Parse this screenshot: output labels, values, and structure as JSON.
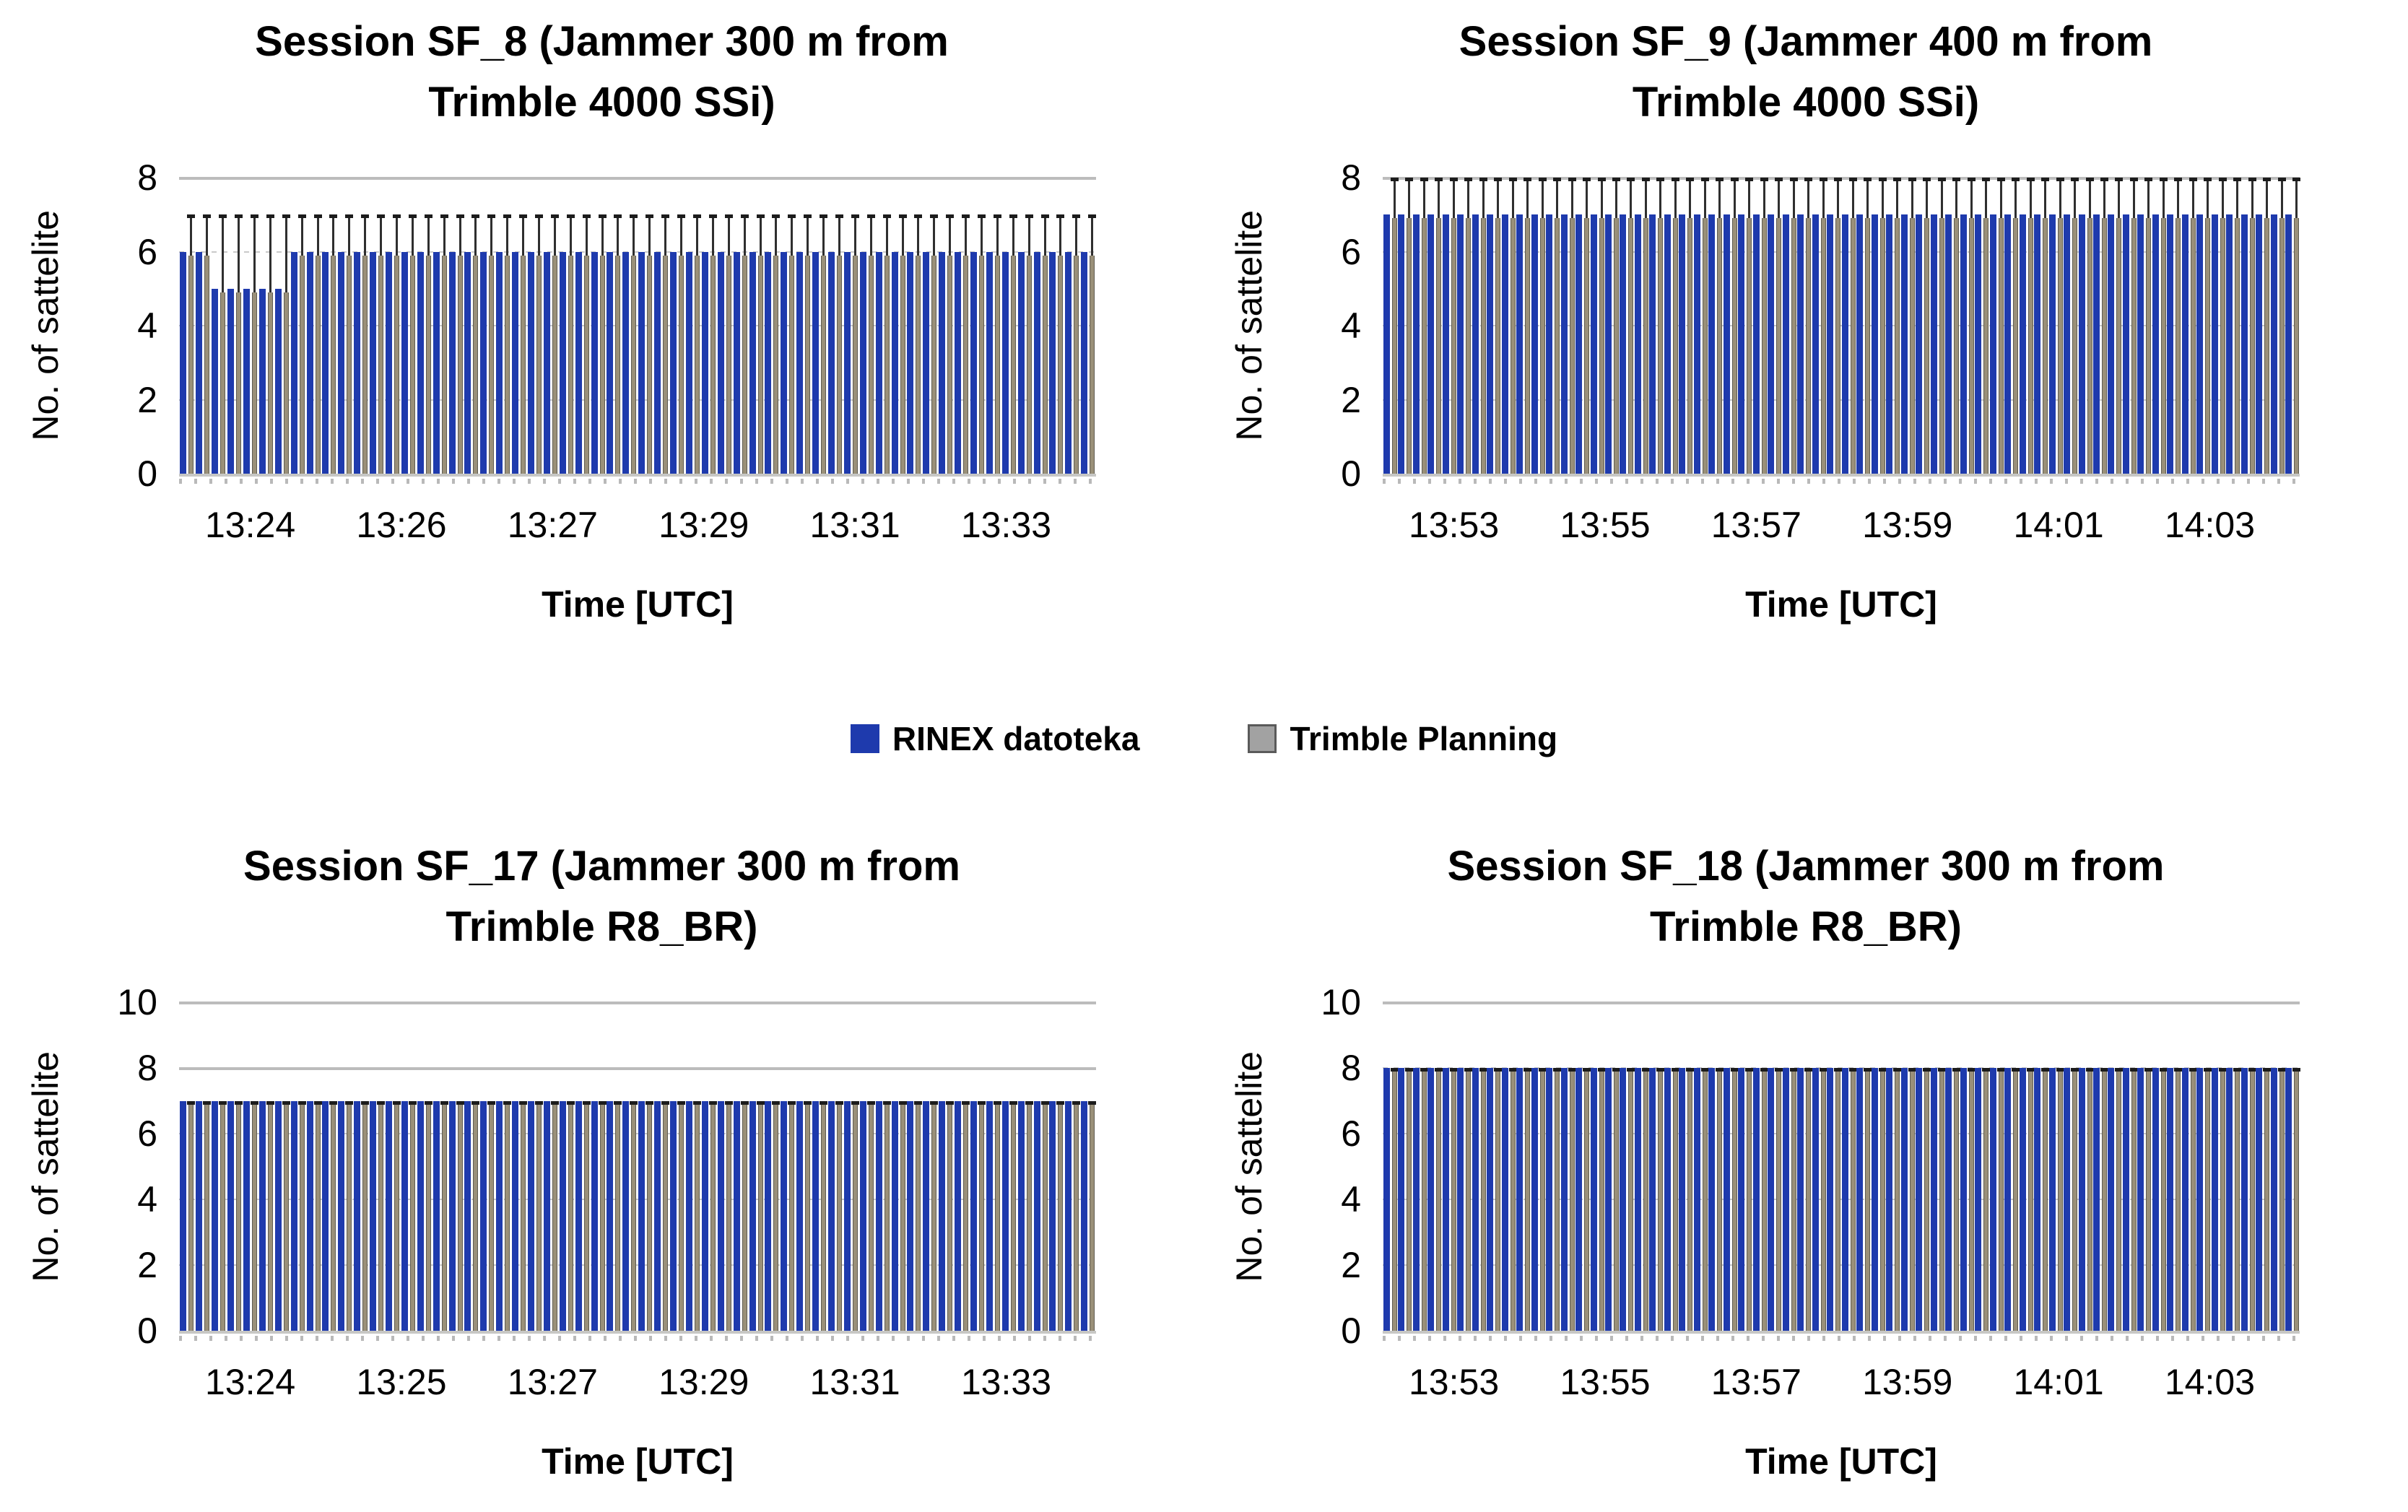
{
  "legend": {
    "items": [
      {
        "label": "RINEX datoteka"
      },
      {
        "label": "Trimble Planning"
      }
    ]
  },
  "colors": {
    "rinex_blue": "#1e3aad",
    "planning_gray_fill": "#9a9079",
    "planning_gray_edge": "#5f5c52",
    "planning_upper_dark": "#2f2f2f",
    "planning_cap_dark": "#1c1c1c",
    "legend_gray_fill": "#a2a2a2",
    "legend_gray_border": "#5a5a5a",
    "grid_solid": "#bcbcbc",
    "grid_dotted": "#c9c9c9"
  },
  "chart_data": [
    {
      "type": "bar",
      "title_line1": "Session SF_8 (Jammer 300 m from",
      "title_line2": "Trimble 4000 SSi)",
      "ylabel": "No. of sattelite",
      "xlabel": "Time [UTC]",
      "ylim": [
        0,
        8
      ],
      "yticks": [
        8,
        6,
        4,
        2,
        0
      ],
      "xticks": [
        "13:24",
        "13:26",
        "13:27",
        "13:29",
        "13:31",
        "13:33"
      ],
      "legend_position": "none",
      "grid": "horizontal",
      "series": {
        "rinex": [
          6,
          6,
          5,
          5,
          5,
          5,
          5,
          6,
          6,
          6,
          6,
          6,
          6,
          6,
          6,
          6,
          6,
          6,
          6,
          6,
          6,
          6,
          6,
          6,
          6,
          6,
          6,
          6,
          6,
          6,
          6,
          6,
          6,
          6,
          6,
          6,
          6,
          6,
          6,
          6,
          6,
          6,
          6,
          6,
          6,
          6,
          6,
          6,
          6,
          6,
          6,
          6,
          6,
          6,
          6,
          6,
          6,
          6
        ],
        "planning": [
          7,
          7,
          7,
          7,
          7,
          7,
          7,
          7,
          7,
          7,
          7,
          7,
          7,
          7,
          7,
          7,
          7,
          7,
          7,
          7,
          7,
          7,
          7,
          7,
          7,
          7,
          7,
          7,
          7,
          7,
          7,
          7,
          7,
          7,
          7,
          7,
          7,
          7,
          7,
          7,
          7,
          7,
          7,
          7,
          7,
          7,
          7,
          7,
          7,
          7,
          7,
          7,
          7,
          7,
          7,
          7,
          7,
          7
        ]
      }
    },
    {
      "type": "bar",
      "title_line1": "Session SF_9 (Jammer 400 m from",
      "title_line2": "Trimble 4000 SSi)",
      "ylabel": "No. of sattelite",
      "xlabel": "Time [UTC]",
      "ylim": [
        0,
        8
      ],
      "yticks": [
        8,
        6,
        4,
        2,
        0
      ],
      "xticks": [
        "13:53",
        "13:55",
        "13:57",
        "13:59",
        "14:01",
        "14:03"
      ],
      "legend_position": "none",
      "grid": "horizontal",
      "series": {
        "rinex": [
          7,
          7,
          7,
          7,
          7,
          7,
          7,
          7,
          7,
          7,
          7,
          7,
          7,
          7,
          7,
          7,
          7,
          7,
          7,
          7,
          7,
          7,
          7,
          7,
          7,
          7,
          7,
          7,
          7,
          7,
          7,
          7,
          7,
          7,
          7,
          7,
          7,
          7,
          7,
          7,
          7,
          7,
          7,
          7,
          7,
          7,
          7,
          7,
          7,
          7,
          7,
          7,
          7,
          7,
          7,
          7,
          7,
          7,
          7,
          7,
          7,
          7
        ],
        "planning": [
          8,
          8,
          8,
          8,
          8,
          8,
          8,
          8,
          8,
          8,
          8,
          8,
          8,
          8,
          8,
          8,
          8,
          8,
          8,
          8,
          8,
          8,
          8,
          8,
          8,
          8,
          8,
          8,
          8,
          8,
          8,
          8,
          8,
          8,
          8,
          8,
          8,
          8,
          8,
          8,
          8,
          8,
          8,
          8,
          8,
          8,
          8,
          8,
          8,
          8,
          8,
          8,
          8,
          8,
          8,
          8,
          8,
          8,
          8,
          8,
          8,
          8
        ]
      }
    },
    {
      "type": "bar",
      "title_line1": "Session SF_17 (Jammer 300 m from",
      "title_line2": "Trimble R8_BR)",
      "ylabel": "No. of sattelite",
      "xlabel": "Time [UTC]",
      "ylim": [
        0,
        10
      ],
      "yticks": [
        10,
        8,
        6,
        4,
        2,
        0
      ],
      "xticks": [
        "13:24",
        "13:25",
        "13:27",
        "13:29",
        "13:31",
        "13:33"
      ],
      "legend_position": "none",
      "grid": "horizontal",
      "series": {
        "rinex": [
          7,
          7,
          7,
          7,
          7,
          7,
          7,
          7,
          7,
          7,
          7,
          7,
          7,
          7,
          7,
          7,
          7,
          7,
          7,
          7,
          7,
          7,
          7,
          7,
          7,
          7,
          7,
          7,
          7,
          7,
          7,
          7,
          7,
          7,
          7,
          7,
          7,
          7,
          7,
          7,
          7,
          7,
          7,
          7,
          7,
          7,
          7,
          7,
          7,
          7,
          7,
          7,
          7,
          7,
          7,
          7,
          7,
          7
        ],
        "planning": [
          7,
          7,
          7,
          7,
          7,
          7,
          7,
          7,
          7,
          7,
          7,
          7,
          7,
          7,
          7,
          7,
          7,
          7,
          7,
          7,
          7,
          7,
          7,
          7,
          7,
          7,
          7,
          7,
          7,
          7,
          7,
          7,
          7,
          7,
          7,
          7,
          7,
          7,
          7,
          7,
          7,
          7,
          7,
          7,
          7,
          7,
          7,
          7,
          7,
          7,
          7,
          7,
          7,
          7,
          7,
          7,
          7,
          7
        ]
      }
    },
    {
      "type": "bar",
      "title_line1": "Session SF_18 (Jammer 300 m from",
      "title_line2": "Trimble R8_BR)",
      "ylabel": "No. of sattelite",
      "xlabel": "Time [UTC]",
      "ylim": [
        0,
        10
      ],
      "yticks": [
        10,
        8,
        6,
        4,
        2,
        0
      ],
      "xticks": [
        "13:53",
        "13:55",
        "13:57",
        "13:59",
        "14:01",
        "14:03"
      ],
      "legend_position": "none",
      "grid": "horizontal",
      "series": {
        "rinex": [
          8,
          8,
          8,
          8,
          8,
          8,
          8,
          8,
          8,
          8,
          8,
          8,
          8,
          8,
          8,
          8,
          8,
          8,
          8,
          8,
          8,
          8,
          8,
          8,
          8,
          8,
          8,
          8,
          8,
          8,
          8,
          8,
          8,
          8,
          8,
          8,
          8,
          8,
          8,
          8,
          8,
          8,
          8,
          8,
          8,
          8,
          8,
          8,
          8,
          8,
          8,
          8,
          8,
          8,
          8,
          8,
          8,
          8,
          8,
          8,
          8,
          8
        ],
        "planning": [
          8,
          8,
          8,
          8,
          8,
          8,
          8,
          8,
          8,
          8,
          8,
          8,
          8,
          8,
          8,
          8,
          8,
          8,
          8,
          8,
          8,
          8,
          8,
          8,
          8,
          8,
          8,
          8,
          8,
          8,
          8,
          8,
          8,
          8,
          8,
          8,
          8,
          8,
          8,
          8,
          8,
          8,
          8,
          8,
          8,
          8,
          8,
          8,
          8,
          8,
          8,
          8,
          8,
          8,
          8,
          8,
          8,
          8,
          8,
          8,
          8,
          8
        ]
      }
    }
  ]
}
